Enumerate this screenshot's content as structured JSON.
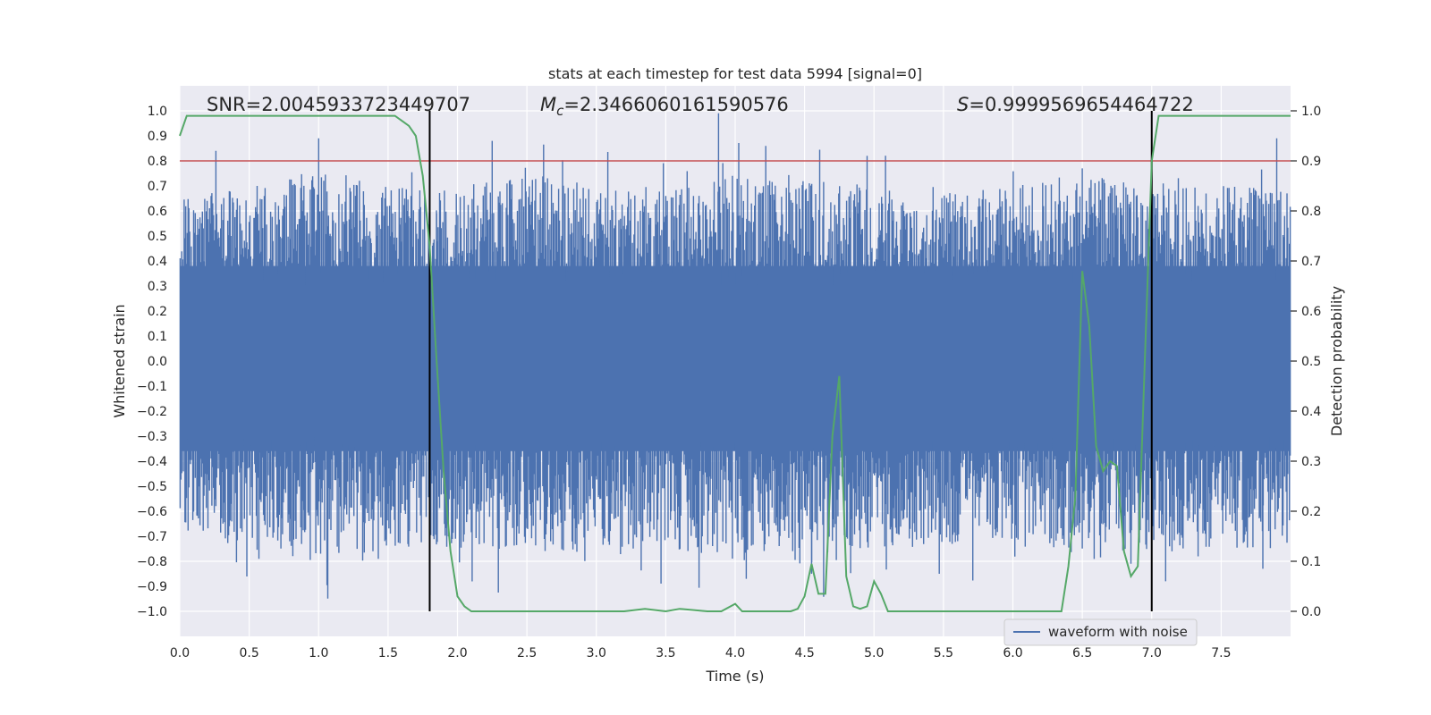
{
  "chart_data": {
    "type": "line",
    "title": "stats at each timestep for test data 5994 [signal=0]",
    "xlabel": "Time (s)",
    "ylabel_left": "Whitened strain",
    "ylabel_right": "Detection probability",
    "xlim": [
      0.0,
      8.0
    ],
    "ylim_left": [
      -1.1,
      1.1
    ],
    "ylim_right": [
      -0.05,
      1.05
    ],
    "x_ticks": [
      "0.0",
      "0.5",
      "1.0",
      "1.5",
      "2.0",
      "2.5",
      "3.0",
      "3.5",
      "4.0",
      "4.5",
      "5.0",
      "5.5",
      "6.0",
      "6.5",
      "7.0",
      "7.5"
    ],
    "x_tick_values": [
      0.0,
      0.5,
      1.0,
      1.5,
      2.0,
      2.5,
      3.0,
      3.5,
      4.0,
      4.5,
      5.0,
      5.5,
      6.0,
      6.5,
      7.0,
      7.5
    ],
    "y_left_ticks": [
      "1.0",
      "0.9",
      "0.8",
      "0.7",
      "0.6",
      "0.5",
      "0.4",
      "0.3",
      "0.2",
      "0.1",
      "0.0",
      "−0.1",
      "−0.2",
      "−0.3",
      "−0.4",
      "−0.5",
      "−0.6",
      "−0.7",
      "−0.8",
      "−0.9",
      "−1.0"
    ],
    "y_left_tick_values": [
      1.0,
      0.9,
      0.8,
      0.7,
      0.6,
      0.5,
      0.4,
      0.3,
      0.2,
      0.1,
      0.0,
      -0.1,
      -0.2,
      -0.3,
      -0.4,
      -0.5,
      -0.6,
      -0.7,
      -0.8,
      -0.9,
      -1.0
    ],
    "y_right_ticks": [
      "1.0",
      "0.9",
      "0.8",
      "0.7",
      "0.6",
      "0.5",
      "0.4",
      "0.3",
      "0.2",
      "0.1",
      "0.0"
    ],
    "y_right_tick_values": [
      1.0,
      0.9,
      0.8,
      0.7,
      0.6,
      0.5,
      0.4,
      0.3,
      0.2,
      0.1,
      0.0
    ],
    "annotations": {
      "snr": "SNR=2.0045933723449707",
      "mc_symbol": "M",
      "mc_sub": "c",
      "mc_value": "=2.3466060161590576",
      "s_symbol": "S",
      "s_value": "=0.9999569654464722"
    },
    "threshold": {
      "value": 0.9,
      "axis": "right",
      "color": "#c44e52"
    },
    "vertical_markers": [
      1.8,
      7.0
    ],
    "legend": {
      "label": "waveform with noise",
      "location": "lower-right"
    },
    "series": [
      {
        "name": "waveform with noise",
        "axis": "left",
        "color": "#4c72b0",
        "description": "dense whitened noise strain, envelope approx",
        "upper_envelope_points": [
          [
            0.0,
            0.45
          ],
          [
            0.5,
            0.5
          ],
          [
            1.0,
            0.55
          ],
          [
            1.5,
            0.5
          ],
          [
            2.0,
            0.5
          ],
          [
            2.5,
            0.55
          ],
          [
            3.0,
            0.5
          ],
          [
            3.5,
            0.5
          ],
          [
            4.0,
            0.55
          ],
          [
            4.5,
            0.55
          ],
          [
            5.0,
            0.5
          ],
          [
            5.5,
            0.5
          ],
          [
            6.0,
            0.5
          ],
          [
            6.5,
            0.55
          ],
          [
            7.0,
            0.5
          ],
          [
            7.5,
            0.5
          ],
          [
            8.0,
            0.5
          ]
        ],
        "peaks": [
          [
            0.26,
            0.84
          ],
          [
            1.0,
            0.89
          ],
          [
            1.85,
            0.59
          ],
          [
            2.25,
            0.88
          ],
          [
            3.88,
            0.99
          ],
          [
            4.22,
            0.86
          ],
          [
            4.95,
            0.82
          ],
          [
            6.5,
            0.77
          ],
          [
            7.9,
            0.89
          ]
        ],
        "troughs": [
          [
            0.57,
            -0.79
          ],
          [
            1.43,
            -0.79
          ],
          [
            2.3,
            -0.75
          ],
          [
            4.08,
            -0.87
          ],
          [
            4.55,
            -0.85
          ],
          [
            5.47,
            -0.85
          ],
          [
            6.85,
            -0.81
          ],
          [
            7.1,
            -0.88
          ],
          [
            7.8,
            -0.83
          ]
        ]
      },
      {
        "name": "detection probability",
        "axis": "right",
        "color": "#55a868",
        "x": [
          0.0,
          0.05,
          0.1,
          0.3,
          0.6,
          0.9,
          1.2,
          1.4,
          1.55,
          1.6,
          1.65,
          1.7,
          1.75,
          1.8,
          1.85,
          1.9,
          1.95,
          2.0,
          2.05,
          2.1,
          2.3,
          2.6,
          2.9,
          3.2,
          3.35,
          3.5,
          3.6,
          3.8,
          3.9,
          4.0,
          4.05,
          4.1,
          4.2,
          4.3,
          4.4,
          4.45,
          4.5,
          4.55,
          4.6,
          4.65,
          4.7,
          4.75,
          4.8,
          4.85,
          4.9,
          4.95,
          5.0,
          5.05,
          5.1,
          5.2,
          5.4,
          5.7,
          6.0,
          6.2,
          6.3,
          6.35,
          6.4,
          6.45,
          6.5,
          6.55,
          6.6,
          6.65,
          6.7,
          6.75,
          6.8,
          6.85,
          6.9,
          6.95,
          7.0,
          7.05,
          7.3,
          7.5,
          7.6,
          7.8,
          8.0
        ],
        "y": [
          0.95,
          0.99,
          0.99,
          0.99,
          0.99,
          0.99,
          0.99,
          0.99,
          0.99,
          0.98,
          0.97,
          0.95,
          0.87,
          0.73,
          0.5,
          0.28,
          0.12,
          0.03,
          0.01,
          0.0,
          0.0,
          0.0,
          0.0,
          0.0,
          0.005,
          0.0,
          0.005,
          0.0,
          0.0,
          0.015,
          0.0,
          0.0,
          0.0,
          0.0,
          0.0,
          0.005,
          0.03,
          0.095,
          0.035,
          0.035,
          0.35,
          0.47,
          0.07,
          0.01,
          0.005,
          0.01,
          0.06,
          0.035,
          0.0,
          0.0,
          0.0,
          0.0,
          0.0,
          0.0,
          0.0,
          0.0,
          0.09,
          0.23,
          0.68,
          0.57,
          0.33,
          0.28,
          0.3,
          0.29,
          0.12,
          0.07,
          0.09,
          0.5,
          0.9,
          0.99,
          0.99,
          0.99,
          0.99,
          0.99,
          0.99
        ]
      }
    ]
  },
  "colors": {
    "plot_bg": "#eaeaf2",
    "grid": "#ffffff",
    "strain": "#4c72b0",
    "prob": "#55a868",
    "threshold": "#c44e52",
    "marker": "#000000"
  }
}
